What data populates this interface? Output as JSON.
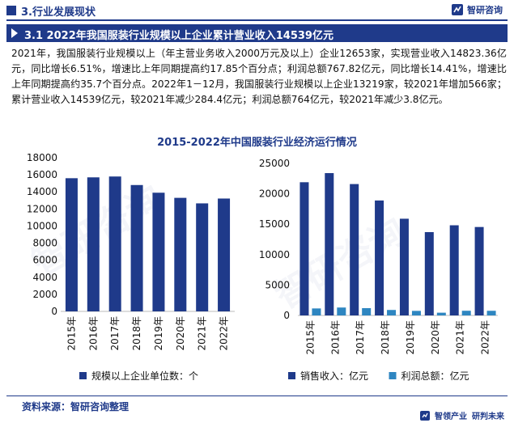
{
  "header": {
    "section": "3.行业发展现状",
    "brand": "智研咨询"
  },
  "titlebar": {
    "title": "3.1 2022年我国服装行业规模以上企业累计营业收入14539亿元"
  },
  "paragraph": "2021年，我国服装行业规模以上（年主营业务收入2000万元及以上）企业12653家，实现营业收入14823.36亿元，同比增长6.51%，增速比上年同期提高约17.85个百分点；利润总额767.82亿元，同比增长14.41%，增速比上年同期提高约35.7个百分点。2022年1－12月，我国服装行业规模以上企业13219家，较2021年增加566家；累计营业收入14539亿元，较2021年减少284.4亿元；利润总额764亿元，较2021年减少3.8亿元。",
  "chart_data": [
    {
      "type": "bar",
      "title": "2015-2022年中国服装行业经济运行情况",
      "categories": [
        "2015年",
        "2016年",
        "2017年",
        "2018年",
        "2019年",
        "2020年",
        "2021年",
        "2022年"
      ],
      "series": [
        {
          "name": "规模以上企业单位数：个",
          "values": [
            15600,
            15700,
            15800,
            14800,
            13900,
            13300,
            12653,
            13219
          ],
          "color": "#1f3a8a"
        }
      ],
      "ylim": [
        0,
        18000
      ],
      "yticks": [
        "0",
        "2000",
        "4000",
        "6000",
        "8000",
        "10000",
        "12000",
        "14000",
        "16000",
        "18000"
      ],
      "grid": false,
      "legend": "bottom"
    },
    {
      "type": "bar",
      "categories": [
        "2015年",
        "2016年",
        "2017年",
        "2018年",
        "2019年",
        "2020年",
        "2021年",
        "2022年"
      ],
      "series": [
        {
          "name": "销售收入：亿元",
          "values": [
            21900,
            23400,
            21600,
            18900,
            15900,
            13700,
            14823,
            14539
          ],
          "color": "#1f3a8a"
        },
        {
          "name": "利润总额：亿元",
          "values": [
            1150,
            1300,
            1200,
            900,
            750,
            450,
            768,
            764
          ],
          "color": "#2e86c1"
        }
      ],
      "ylim": [
        0,
        25000
      ],
      "yticks": [
        "0",
        "5000",
        "10000",
        "15000",
        "20000",
        "25000"
      ],
      "grid": false,
      "legend": "bottom"
    }
  ],
  "footer": {
    "source": "资料来源：智研咨询整理",
    "slogan1": "智领产业",
    "slogan2": "研判未来"
  }
}
